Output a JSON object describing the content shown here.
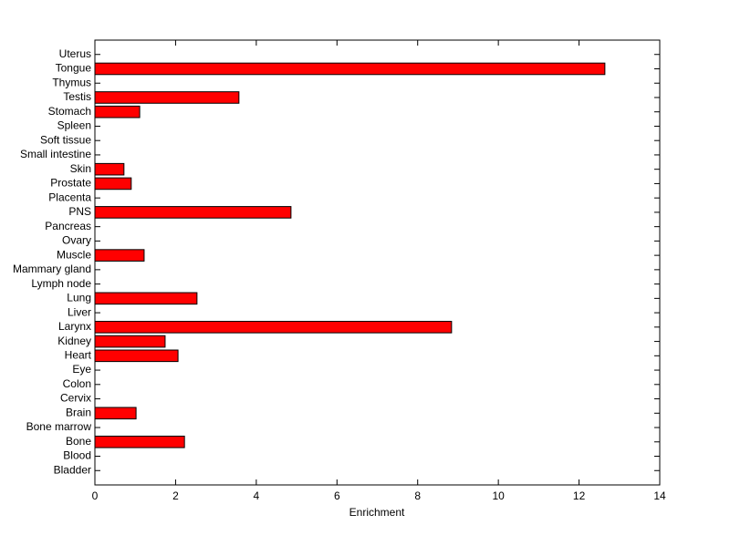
{
  "chart_data": {
    "type": "barh",
    "xlabel": "Enrichment",
    "categories": [
      "Bladder",
      "Blood",
      "Bone",
      "Bone marrow",
      "Brain",
      "Cervix",
      "Colon",
      "Eye",
      "Heart",
      "Kidney",
      "Larynx",
      "Liver",
      "Lung",
      "Lymph node",
      "Mammary gland",
      "Muscle",
      "Ovary",
      "Pancreas",
      "PNS",
      "Placenta",
      "Prostate",
      "Skin",
      "Small intestine",
      "Soft tissue",
      "Spleen",
      "Stomach",
      "Testis",
      "Thymus",
      "Tongue",
      "Uterus"
    ],
    "values": [
      0,
      0,
      2.22,
      0,
      1.02,
      0,
      0,
      0,
      2.06,
      1.74,
      8.84,
      0,
      2.53,
      0,
      0,
      1.22,
      0,
      0,
      4.86,
      0,
      0.9,
      0.72,
      0,
      0,
      0,
      1.11,
      3.57,
      0,
      12.64,
      0
    ],
    "color": "#ff0000",
    "xlim": [
      0,
      14
    ],
    "xticks": [
      0,
      2,
      4,
      6,
      8,
      10,
      12,
      14
    ]
  }
}
